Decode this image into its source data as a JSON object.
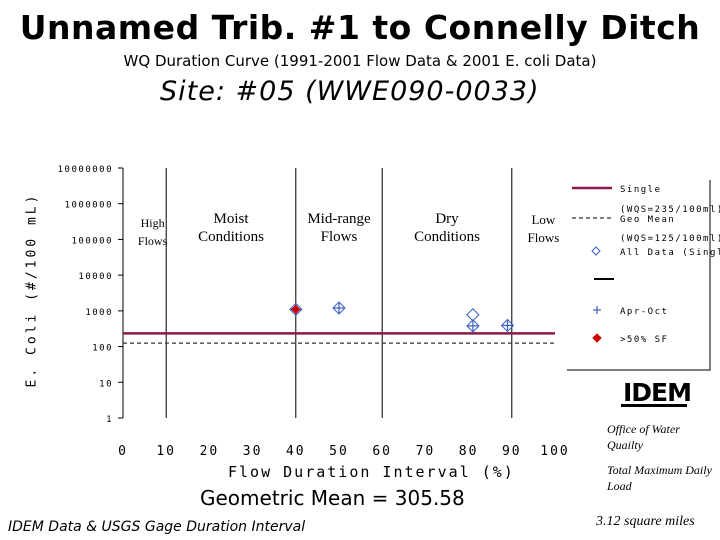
{
  "header": {
    "title": "Unnamed Trib. #1 to Connelly Ditch",
    "subtitle": "WQ Duration Curve  (1991-2001 Flow Data & 2001 E. coli Data)",
    "site": "Site:  #05 (WWE090-0033)"
  },
  "colors": {
    "reference_line": "#8b1a4b",
    "zone_lines": "#000000",
    "all_data_marker": "#3b5fc0",
    "seasonal_marker": "#3b5fc0",
    "exceedance_marker": "#cc0000"
  },
  "chart_data": {
    "type": "scatter",
    "xlabel": "Flow Duration Interval (%)",
    "ylabel": "E. Coli (#/100 mL)",
    "xlim": [
      0,
      100
    ],
    "ylim": [
      1,
      10000000
    ],
    "yscale": "log",
    "x_ticks": [
      "0",
      "10",
      "20",
      "30",
      "40",
      "50",
      "60",
      "70",
      "80",
      "90",
      "100"
    ],
    "y_ticks": [
      "10000000",
      "1000000",
      "100000",
      "10000",
      "1000",
      "100",
      "10",
      "1"
    ],
    "zone_boundaries": [
      10,
      40,
      60,
      90
    ],
    "zones": [
      {
        "label": "High Flows",
        "line1": "High",
        "line2": "Flows"
      },
      {
        "label": "Moist Conditions",
        "line1": "Moist",
        "line2": "Conditions"
      },
      {
        "label": "Mid-range Flows",
        "line1": "Mid-range",
        "line2": "Flows"
      },
      {
        "label": "Dry Conditions",
        "line1": "Dry",
        "line2": "Conditions"
      },
      {
        "label": "Low Flows",
        "line1": "Low",
        "line2": "Flows"
      }
    ],
    "reference_lines": [
      {
        "name": "Single Sample (WQS=235/100ml)",
        "y": 235,
        "style": "solid"
      },
      {
        "name": "Geo Mean (WQS=125/100ml)",
        "y": 125,
        "style": "dashed"
      }
    ],
    "series": [
      {
        "name": "All Data (Single)",
        "marker": "diamond",
        "points": [
          {
            "x": 40,
            "y": 1100
          },
          {
            "x": 50,
            "y": 1200
          },
          {
            "x": 81,
            "y": 780
          },
          {
            "x": 81,
            "y": 380
          },
          {
            "x": 89,
            "y": 390
          }
        ]
      },
      {
        "name": "Apr-Oct",
        "marker": "plus",
        "points": [
          {
            "x": 40,
            "y": 1100
          },
          {
            "x": 50,
            "y": 1200
          },
          {
            "x": 81,
            "y": 380
          },
          {
            "x": 89,
            "y": 390
          }
        ]
      },
      {
        "name": ">50% SF",
        "marker": "red-diamond",
        "points": [
          {
            "x": 40,
            "y": 1100
          }
        ]
      }
    ],
    "legend": {
      "position": "right",
      "entries": [
        {
          "line1": "Single",
          "line2": "(WQS=235/100ml)"
        },
        {
          "line1": "Geo Mean",
          "line2": "(WQS=125/100ml)"
        },
        {
          "line1": "All Data (Single)",
          "line2": ""
        },
        {
          "line1": "Apr-Oct",
          "line2": ""
        },
        {
          "line1": ">50% SF",
          "line2": ""
        }
      ]
    }
  },
  "footer": {
    "geo_mean": "Geometric Mean = 305.58",
    "source": "IDEM Data & USGS Gage Duration Interval",
    "office": "Office of Water Quailty",
    "tmdl": "Total Maximum Daily Load",
    "area": "3.12 square miles",
    "logo_text": "IDEM"
  }
}
